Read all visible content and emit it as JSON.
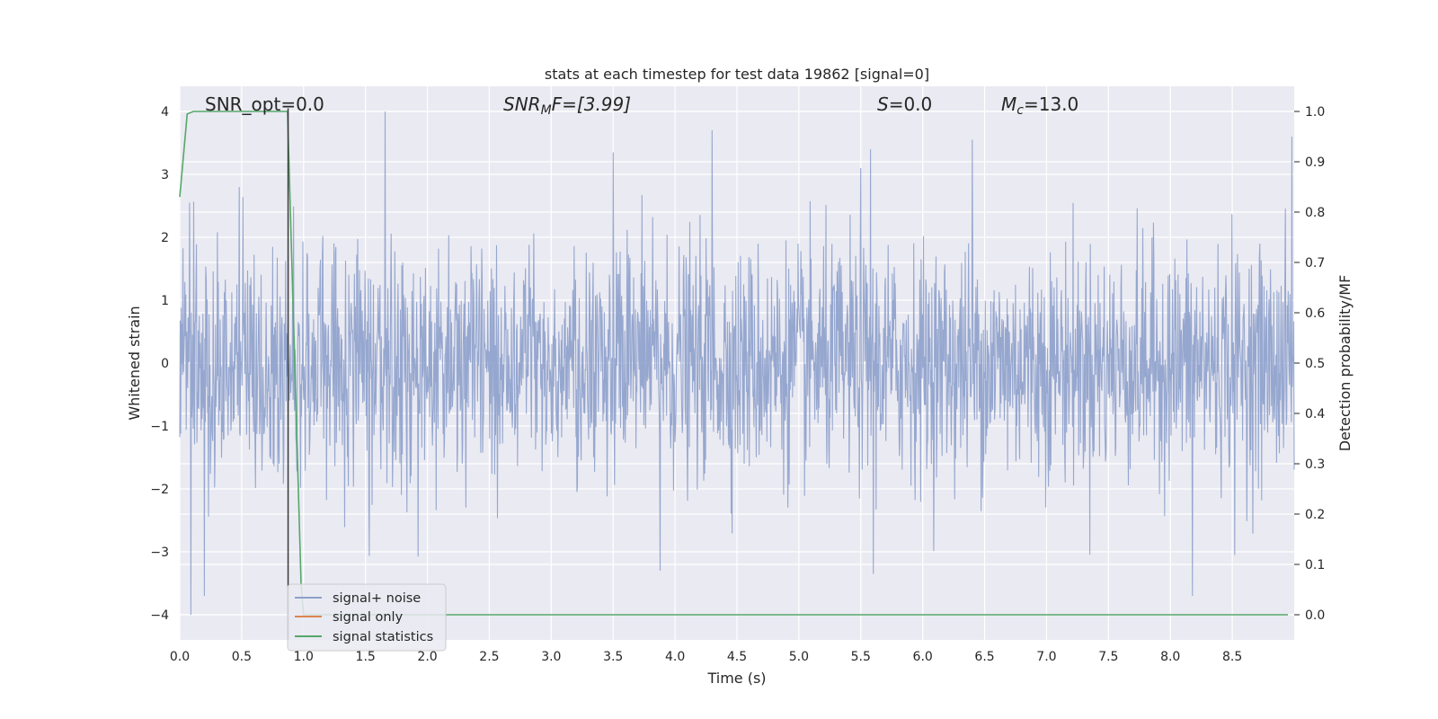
{
  "chart_data": {
    "type": "line",
    "title": "stats at each timestep for test data 19862 [signal=0]",
    "xlabel": "Time (s)",
    "ylabel": "Whitened strain",
    "y2label": "Detection probability/MF",
    "xlim": [
      0.0,
      9.0
    ],
    "ylim": [
      -4.4,
      4.4
    ],
    "y2lim": [
      -0.05,
      1.05
    ],
    "xticks": [
      0.0,
      0.5,
      1.0,
      1.5,
      2.0,
      2.5,
      3.0,
      3.5,
      4.0,
      4.5,
      5.0,
      5.5,
      6.0,
      6.5,
      7.0,
      7.5,
      8.0,
      8.5
    ],
    "yticks": [
      -4,
      -3,
      -2,
      -1,
      0,
      1,
      2,
      3,
      4
    ],
    "y2ticks": [
      0.0,
      0.1,
      0.2,
      0.3,
      0.4,
      0.5,
      0.6,
      0.7,
      0.8,
      0.9,
      1.0
    ],
    "xtick_labels": [
      "0.0",
      "0.5",
      "1.0",
      "1.5",
      "2.0",
      "2.5",
      "3.0",
      "3.5",
      "4.0",
      "4.5",
      "5.0",
      "5.5",
      "6.0",
      "6.5",
      "7.0",
      "7.5",
      "8.0",
      "8.5"
    ],
    "ytick_labels": [
      "−4",
      "−3",
      "−2",
      "−1",
      "0",
      "1",
      "2",
      "3",
      "4"
    ],
    "y2tick_labels": [
      "0.0",
      "0.1",
      "0.2",
      "0.3",
      "0.4",
      "0.5",
      "0.6",
      "0.7",
      "0.8",
      "0.9",
      "1.0"
    ],
    "grid": true,
    "legend_position": "lower-left",
    "annotations": {
      "snr_opt": "SNR_opt=0.0",
      "snr_mf_base": "SNR",
      "snr_mf_sub": "M",
      "snr_mf_rest": "F=[3.99]",
      "s_var": "S",
      "s_rest": "=0.0",
      "mc_base": "M",
      "mc_sub": "c",
      "mc_rest": "=13.0"
    },
    "vline_x": 0.875,
    "series": [
      {
        "name": "signal+ noise",
        "axis": "left",
        "color": "#8da0cb",
        "description_values": {
          "duration": 9.0,
          "std": 0.9,
          "max": 4.0,
          "min": -4.0,
          "peaks": [
            [
              0.08,
              2.55
            ],
            [
              0.48,
              2.8
            ],
            [
              1.66,
              4.0
            ],
            [
              3.5,
              3.35
            ],
            [
              4.3,
              3.7
            ],
            [
              5.5,
              3.1
            ],
            [
              5.58,
              3.4
            ],
            [
              6.4,
              3.55
            ],
            [
              8.98,
              3.6
            ],
            [
              0.09,
              -4.0
            ],
            [
              0.2,
              -3.7
            ],
            [
              3.88,
              -3.3
            ],
            [
              5.6,
              -3.35
            ],
            [
              8.18,
              -3.7
            ],
            [
              8.52,
              -3.05
            ]
          ]
        }
      },
      {
        "name": "signal only",
        "axis": "left",
        "color": "#dd8452",
        "x": [],
        "y": []
      },
      {
        "name": "signal statistics",
        "axis": "right",
        "color": "#55a868",
        "x": [
          0.0,
          0.06,
          0.11,
          0.2,
          0.4,
          0.6,
          0.8,
          0.87,
          0.98,
          1.0,
          1.5,
          2.0,
          3.0,
          4.0,
          5.0,
          6.0,
          7.0,
          8.0,
          8.95
        ],
        "y": [
          0.83,
          0.995,
          1.0,
          1.0,
          1.0,
          1.0,
          1.0,
          1.0,
          0.06,
          0.0,
          0.0,
          0.0,
          0.0,
          0.0,
          0.0,
          0.0,
          0.0,
          0.0,
          0.0
        ]
      }
    ]
  }
}
